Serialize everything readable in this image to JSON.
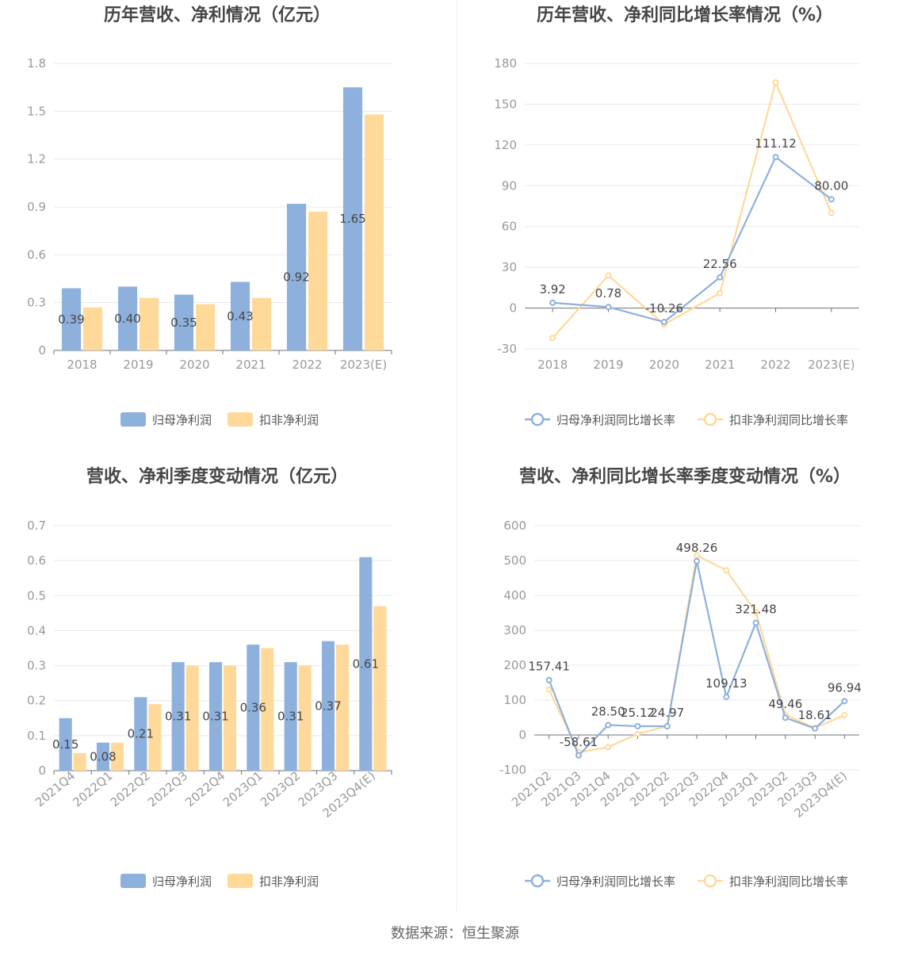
{
  "colors": {
    "blue": "#8eb0dd",
    "yellow": "#ffd99a",
    "grid": "#e6e8ef",
    "axis": "#6e7079",
    "text": "#464646",
    "tick": "#999999"
  },
  "chart_data": [
    {
      "type": "bar",
      "title": "历年营收、净利情况（亿元）",
      "categories": [
        "2018",
        "2019",
        "2020",
        "2021",
        "2022",
        "2023(E)"
      ],
      "yticks": [
        "0",
        "0.3",
        "0.6",
        "0.9",
        "1.2",
        "1.5",
        "1.8"
      ],
      "ylim": [
        0,
        1.8
      ],
      "series": [
        {
          "name": "归母净利润",
          "color": "#8eb0dd",
          "values": [
            0.39,
            0.4,
            0.35,
            0.43,
            0.92,
            1.65
          ],
          "labels": [
            "0.39",
            "0.40",
            "0.35",
            "0.43",
            "0.92",
            "1.65"
          ]
        },
        {
          "name": "扣非净利润",
          "color": "#ffd99a",
          "values": [
            0.27,
            0.33,
            0.29,
            0.33,
            0.87,
            1.48
          ]
        }
      ],
      "legend": "bottom"
    },
    {
      "type": "line",
      "title": "历年营收、净利同比增长率情况（%）",
      "categories": [
        "2018",
        "2019",
        "2020",
        "2021",
        "2022",
        "2023(E)"
      ],
      "yticks": [
        "-30",
        "0",
        "30",
        "60",
        "90",
        "120",
        "150",
        "180"
      ],
      "ylim": [
        -30,
        180
      ],
      "series": [
        {
          "name": "归母净利润同比增长率",
          "color": "#8eb0dd",
          "values": [
            3.92,
            0.78,
            -10.26,
            22.56,
            111.12,
            80.0
          ],
          "labels": [
            "3.92",
            "0.78",
            "-10.26",
            "22.56",
            "111.12",
            "80.00"
          ]
        },
        {
          "name": "扣非净利润同比增长率",
          "color": "#ffd99a",
          "values": [
            -22,
            24,
            -12,
            11,
            166,
            70
          ]
        }
      ],
      "legend": "bottom"
    },
    {
      "type": "bar",
      "title": "营收、净利季度变动情况（亿元）",
      "categories": [
        "2021Q4",
        "2022Q1",
        "2022Q2",
        "2022Q3",
        "2022Q4",
        "2023Q1",
        "2023Q2",
        "2023Q3",
        "2023Q4(E)"
      ],
      "yticks": [
        "0",
        "0.1",
        "0.2",
        "0.3",
        "0.4",
        "0.5",
        "0.6",
        "0.7"
      ],
      "ylim": [
        0,
        0.7
      ],
      "series": [
        {
          "name": "归母净利润",
          "color": "#8eb0dd",
          "values": [
            0.15,
            0.08,
            0.21,
            0.31,
            0.31,
            0.36,
            0.31,
            0.37,
            0.61
          ],
          "labels": [
            "0.15",
            "0.08",
            "0.21",
            "0.31",
            "0.31",
            "0.36",
            "0.31",
            "0.37",
            "0.61"
          ]
        },
        {
          "name": "扣非净利润",
          "color": "#ffd99a",
          "values": [
            0.05,
            0.08,
            0.19,
            0.3,
            0.3,
            0.35,
            0.3,
            0.36,
            0.47
          ]
        }
      ],
      "legend": "bottom"
    },
    {
      "type": "line",
      "title": "营收、净利同比增长率季度变动情况（%）",
      "categories": [
        "2021Q2",
        "2021Q3",
        "2021Q4",
        "2022Q1",
        "2022Q2",
        "2022Q3",
        "2022Q4",
        "2023Q1",
        "2023Q2",
        "2023Q3",
        "2023Q4(E)"
      ],
      "yticks": [
        "-100",
        "0",
        "100",
        "200",
        "300",
        "400",
        "500",
        "600"
      ],
      "ylim": [
        -100,
        600
      ],
      "series": [
        {
          "name": "归母净利润同比增长率",
          "color": "#8eb0dd",
          "values": [
            157.41,
            -58.61,
            28.5,
            25.12,
            24.97,
            498.26,
            109.13,
            321.48,
            49.46,
            18.61,
            96.94
          ],
          "labels": [
            "157.41",
            "-58.61",
            "28.50",
            "25.12",
            "24.97",
            "498.26",
            "109.13",
            "321.48",
            "49.46",
            "18.61",
            "96.94"
          ]
        },
        {
          "name": "扣非净利润同比增长率",
          "color": "#ffd99a",
          "values": [
            130,
            -50,
            -35,
            3,
            25,
            515,
            472,
            352,
            58,
            20,
            57
          ]
        }
      ],
      "legend": "bottom"
    }
  ],
  "source": "数据来源：恒生聚源"
}
